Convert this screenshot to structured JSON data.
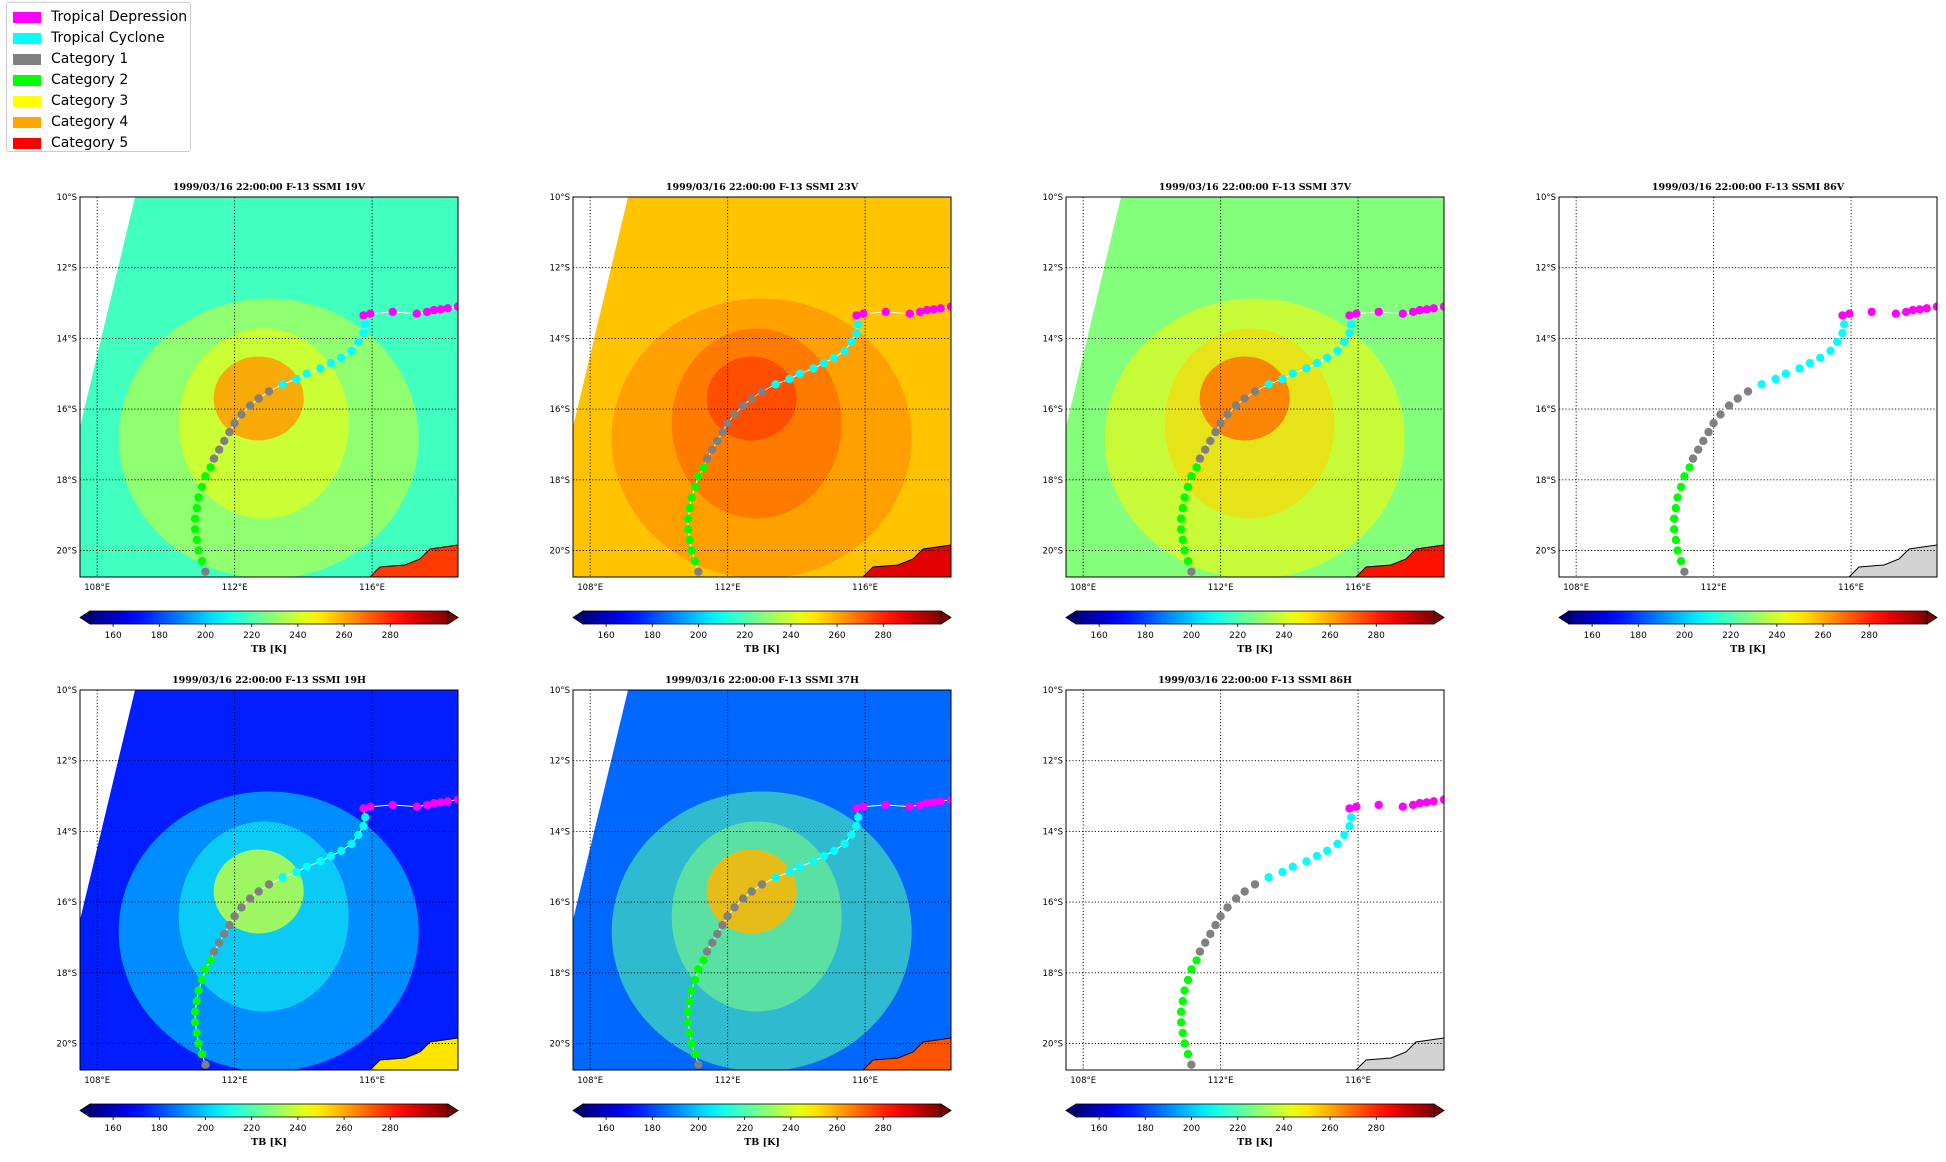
{
  "legend": {
    "items": [
      {
        "label": "Tropical Depression",
        "color": "#ff00ff"
      },
      {
        "label": "Tropical Cyclone",
        "color": "#00ffff"
      },
      {
        "label": "Category 1",
        "color": "#808080"
      },
      {
        "label": "Category 2",
        "color": "#00ff00"
      },
      {
        "label": "Category 3",
        "color": "#ffff00"
      },
      {
        "label": "Category 4",
        "color": "#ffa500"
      },
      {
        "label": "Category 5",
        "color": "#ff0000"
      }
    ]
  },
  "colorbar": {
    "label": "TB [K]",
    "ticks": [
      160,
      180,
      200,
      220,
      240,
      260,
      280
    ],
    "range": [
      150,
      305
    ],
    "colormap": "jet",
    "extend": "both"
  },
  "map": {
    "lon_range": [
      107.5,
      118.5
    ],
    "lat_range": [
      -20.75,
      -10.0
    ],
    "x_ticks": [
      {
        "value": 108,
        "label": "108°E"
      },
      {
        "value": 112,
        "label": "112°E"
      },
      {
        "value": 116,
        "label": "116°E"
      }
    ],
    "y_ticks": [
      {
        "value": -10,
        "label": "10°S"
      },
      {
        "value": -12,
        "label": "12°S"
      },
      {
        "value": -14,
        "label": "14°S"
      },
      {
        "value": -16,
        "label": "16°S"
      },
      {
        "value": -18,
        "label": "18°S"
      },
      {
        "value": -20,
        "label": "20°S"
      }
    ],
    "land_color": "#d3d3d3"
  },
  "chart_data": [
    {
      "type": "heatmap",
      "title": "1999/03/16 22:00:00  F-13 SSMI 19V",
      "channel": "19V",
      "background_tb": 218,
      "storm_tb": 262,
      "has_data": true
    },
    {
      "type": "heatmap",
      "title": "1999/03/16 22:00:00  F-13 SSMI 23V",
      "channel": "23V",
      "background_tb": 256,
      "storm_tb": 275,
      "has_data": true
    },
    {
      "type": "heatmap",
      "title": "1999/03/16 22:00:00  F-13 SSMI 37V",
      "channel": "37V",
      "background_tb": 228,
      "storm_tb": 268,
      "has_data": true
    },
    {
      "type": "heatmap",
      "title": "1999/03/16 22:00:00  F-13 SSMI 86V",
      "channel": "86V",
      "has_data": false
    },
    {
      "type": "heatmap",
      "title": "1999/03/16 22:00:00  F-13 SSMI 19H",
      "channel": "19H",
      "background_tb": 174,
      "storm_tb": 236,
      "has_data": true
    },
    {
      "type": "heatmap",
      "title": "1999/03/16 22:00:00  F-13 SSMI 37H",
      "channel": "37H",
      "background_tb": 185,
      "storm_tb": 258,
      "has_data": true
    },
    {
      "type": "heatmap",
      "title": "1999/03/16 22:00:00  F-13 SSMI 86H",
      "channel": "86H",
      "has_data": false
    }
  ],
  "track": [
    {
      "lon": 118.5,
      "lat": -13.1,
      "cat": "Tropical Depression"
    },
    {
      "lon": 118.2,
      "lat": -13.15,
      "cat": "Tropical Depression"
    },
    {
      "lon": 118.0,
      "lat": -13.18,
      "cat": "Tropical Depression"
    },
    {
      "lon": 117.8,
      "lat": -13.2,
      "cat": "Tropical Depression"
    },
    {
      "lon": 117.6,
      "lat": -13.25,
      "cat": "Tropical Depression"
    },
    {
      "lon": 117.3,
      "lat": -13.3,
      "cat": "Tropical Depression"
    },
    {
      "lon": 116.6,
      "lat": -13.25,
      "cat": "Tropical Depression"
    },
    {
      "lon": 115.95,
      "lat": -13.3,
      "cat": "Tropical Depression"
    },
    {
      "lon": 115.75,
      "lat": -13.35,
      "cat": "Tropical Depression"
    },
    {
      "lon": 115.8,
      "lat": -13.6,
      "cat": "Tropical Cyclone"
    },
    {
      "lon": 115.75,
      "lat": -13.85,
      "cat": "Tropical Cyclone"
    },
    {
      "lon": 115.6,
      "lat": -14.1,
      "cat": "Tropical Cyclone"
    },
    {
      "lon": 115.4,
      "lat": -14.35,
      "cat": "Tropical Cyclone"
    },
    {
      "lon": 115.1,
      "lat": -14.55,
      "cat": "Tropical Cyclone"
    },
    {
      "lon": 114.8,
      "lat": -14.7,
      "cat": "Tropical Cyclone"
    },
    {
      "lon": 114.5,
      "lat": -14.85,
      "cat": "Tropical Cyclone"
    },
    {
      "lon": 114.1,
      "lat": -15.0,
      "cat": "Tropical Cyclone"
    },
    {
      "lon": 113.8,
      "lat": -15.15,
      "cat": "Tropical Cyclone"
    },
    {
      "lon": 113.4,
      "lat": -15.3,
      "cat": "Tropical Cyclone"
    },
    {
      "lon": 113.0,
      "lat": -15.5,
      "cat": "Category 1"
    },
    {
      "lon": 112.7,
      "lat": -15.7,
      "cat": "Category 1"
    },
    {
      "lon": 112.45,
      "lat": -15.9,
      "cat": "Category 1"
    },
    {
      "lon": 112.2,
      "lat": -16.15,
      "cat": "Category 1"
    },
    {
      "lon": 112.0,
      "lat": -16.4,
      "cat": "Category 1"
    },
    {
      "lon": 111.85,
      "lat": -16.65,
      "cat": "Category 1"
    },
    {
      "lon": 111.7,
      "lat": -16.9,
      "cat": "Category 1"
    },
    {
      "lon": 111.55,
      "lat": -17.15,
      "cat": "Category 1"
    },
    {
      "lon": 111.4,
      "lat": -17.4,
      "cat": "Category 1"
    },
    {
      "lon": 111.3,
      "lat": -17.65,
      "cat": "Category 2"
    },
    {
      "lon": 111.15,
      "lat": -17.9,
      "cat": "Category 2"
    },
    {
      "lon": 111.05,
      "lat": -18.2,
      "cat": "Category 2"
    },
    {
      "lon": 110.95,
      "lat": -18.5,
      "cat": "Category 2"
    },
    {
      "lon": 110.9,
      "lat": -18.8,
      "cat": "Category 2"
    },
    {
      "lon": 110.85,
      "lat": -19.1,
      "cat": "Category 2"
    },
    {
      "lon": 110.85,
      "lat": -19.4,
      "cat": "Category 2"
    },
    {
      "lon": 110.9,
      "lat": -19.7,
      "cat": "Category 2"
    },
    {
      "lon": 110.95,
      "lat": -20.0,
      "cat": "Category 2"
    },
    {
      "lon": 111.05,
      "lat": -20.3,
      "cat": "Category 2"
    },
    {
      "lon": 111.15,
      "lat": -20.6,
      "cat": "Category 1"
    }
  ]
}
